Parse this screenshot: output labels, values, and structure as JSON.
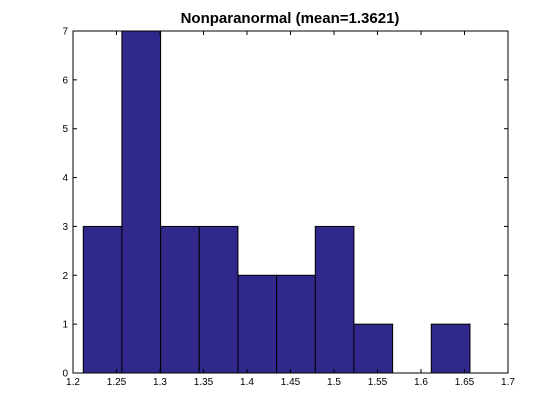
{
  "chart_data": {
    "type": "bar",
    "subtype": "histogram",
    "title": "Nonparanormal (mean=1.3621)",
    "xlabel": "",
    "ylabel": "",
    "xlim": [
      1.2,
      1.7
    ],
    "ylim": [
      0,
      7
    ],
    "x_ticks": [
      "1.2",
      "1.25",
      "1.3",
      "1.35",
      "1.4",
      "1.45",
      "1.5",
      "1.55",
      "1.6",
      "1.65",
      "1.7"
    ],
    "y_ticks": [
      "0",
      "1",
      "2",
      "3",
      "4",
      "5",
      "6",
      "7"
    ],
    "bins": [
      {
        "x0": 1.2118,
        "x1": 1.2562,
        "count": 3
      },
      {
        "x0": 1.2562,
        "x1": 1.3007,
        "count": 7
      },
      {
        "x0": 1.3007,
        "x1": 1.3451,
        "count": 3
      },
      {
        "x0": 1.3451,
        "x1": 1.3896,
        "count": 3
      },
      {
        "x0": 1.3896,
        "x1": 1.434,
        "count": 2
      },
      {
        "x0": 1.434,
        "x1": 1.4785,
        "count": 2
      },
      {
        "x0": 1.4785,
        "x1": 1.5229,
        "count": 3
      },
      {
        "x0": 1.5229,
        "x1": 1.5674,
        "count": 1
      },
      {
        "x0": 1.5674,
        "x1": 1.6118,
        "count": 0
      },
      {
        "x0": 1.6118,
        "x1": 1.6563,
        "count": 1
      }
    ],
    "grid": false,
    "bar_color": "#30288a",
    "edge_color": "#000000"
  }
}
